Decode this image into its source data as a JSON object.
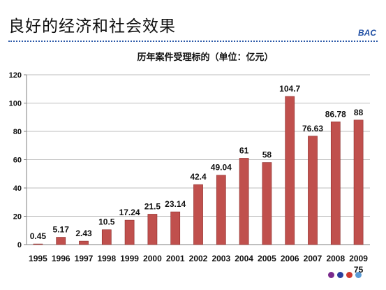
{
  "slide": {
    "title": "良好的经济和社会效果",
    "brand": "BAC"
  },
  "chart_data": {
    "type": "bar",
    "title": "历年案件受理标的（单位：亿元）",
    "categories": [
      "1995",
      "1996",
      "1997",
      "1998",
      "1999",
      "2000",
      "2001",
      "2002",
      "2003",
      "2004",
      "2005",
      "2006",
      "2007",
      "2008",
      "2009"
    ],
    "values": [
      0.45,
      5.17,
      2.43,
      10.5,
      17.24,
      21.5,
      23.14,
      42.4,
      49.04,
      61,
      58,
      104.7,
      76.63,
      86.78,
      88
    ],
    "data_labels": [
      "0.45",
      "5.17",
      "2.43",
      "10.5",
      "17.24",
      "21.5",
      "23.14",
      "42.4",
      "49.04",
      "61",
      "58",
      "104.7",
      "76.63",
      "86.78",
      "88"
    ],
    "extra_label": "75",
    "ylim": [
      0,
      120
    ],
    "yticks": [
      0,
      20,
      40,
      60,
      80,
      100,
      120
    ],
    "grid": true,
    "xlabel": "",
    "ylabel": "",
    "bar_color": "#c0504d",
    "bar_edge_color": "#8b2a28",
    "legend": "none"
  },
  "decor": {
    "dot_colors": [
      "#7a2a8c",
      "#2a3f9e",
      "#d0392f",
      "#5b9bd5"
    ]
  }
}
